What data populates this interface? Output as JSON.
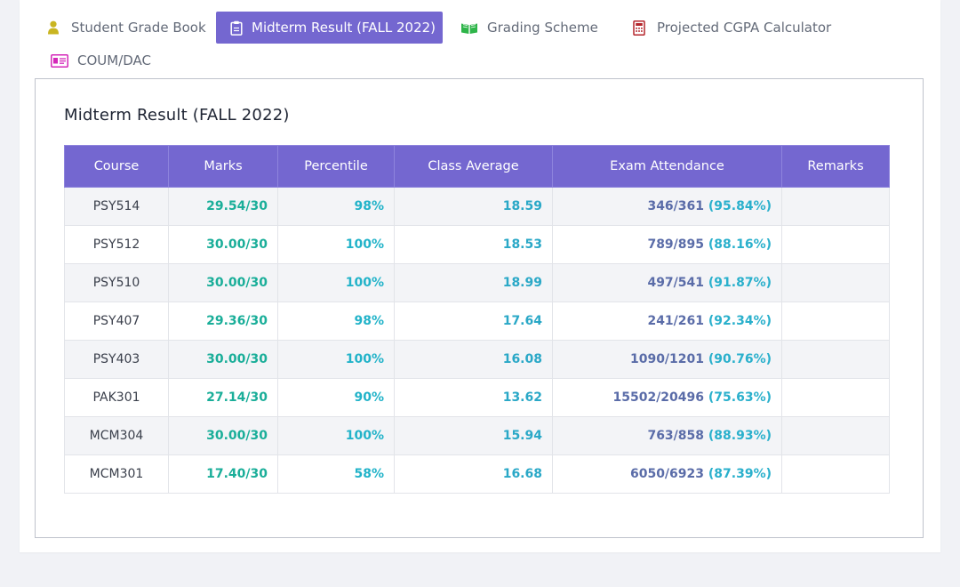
{
  "tabs": [
    {
      "label": "Student Grade Book",
      "icon": "user-icon",
      "active": false
    },
    {
      "label": "Midterm Result (FALL 2022)",
      "icon": "clipboard-icon",
      "active": true
    },
    {
      "label": "Grading Scheme",
      "icon": "open-book-icon",
      "active": false
    },
    {
      "label": "Projected CGPA Calculator",
      "icon": "calculator-icon",
      "active": false
    },
    {
      "label": "COUM/DAC",
      "icon": "id-card-icon",
      "active": false
    }
  ],
  "panel": {
    "title": "Midterm Result (FALL 2022)"
  },
  "table": {
    "headers": [
      "Course",
      "Marks",
      "Percentile",
      "Class Average",
      "Exam Attendance",
      "Remarks"
    ],
    "rows": [
      {
        "course": "PSY514",
        "marks": "29.54/30",
        "percentile": "98%",
        "class_average": "18.59",
        "attendance": "346/361",
        "attendance_pct": "(95.84%)",
        "remarks": ""
      },
      {
        "course": "PSY512",
        "marks": "30.00/30",
        "percentile": "100%",
        "class_average": "18.53",
        "attendance": "789/895",
        "attendance_pct": "(88.16%)",
        "remarks": ""
      },
      {
        "course": "PSY510",
        "marks": "30.00/30",
        "percentile": "100%",
        "class_average": "18.99",
        "attendance": "497/541",
        "attendance_pct": "(91.87%)",
        "remarks": ""
      },
      {
        "course": "PSY407",
        "marks": "29.36/30",
        "percentile": "98%",
        "class_average": "17.64",
        "attendance": "241/261",
        "attendance_pct": "(92.34%)",
        "remarks": ""
      },
      {
        "course": "PSY403",
        "marks": "30.00/30",
        "percentile": "100%",
        "class_average": "16.08",
        "attendance": "1090/1201",
        "attendance_pct": "(90.76%)",
        "remarks": ""
      },
      {
        "course": "PAK301",
        "marks": "27.14/30",
        "percentile": "90%",
        "class_average": "13.62",
        "attendance": "15502/20496",
        "attendance_pct": "(75.63%)",
        "remarks": ""
      },
      {
        "course": "MCM304",
        "marks": "30.00/30",
        "percentile": "100%",
        "class_average": "15.94",
        "attendance": "763/858",
        "attendance_pct": "(88.93%)",
        "remarks": ""
      },
      {
        "course": "MCM301",
        "marks": "17.40/30",
        "percentile": "58%",
        "class_average": "16.68",
        "attendance": "6050/6923",
        "attendance_pct": "(87.39%)",
        "remarks": ""
      }
    ]
  },
  "colors": {
    "accent": "#7467d0",
    "marks": "#1aae99",
    "percentile": "#22b3c9",
    "attendance_count": "#5a6ca8"
  }
}
